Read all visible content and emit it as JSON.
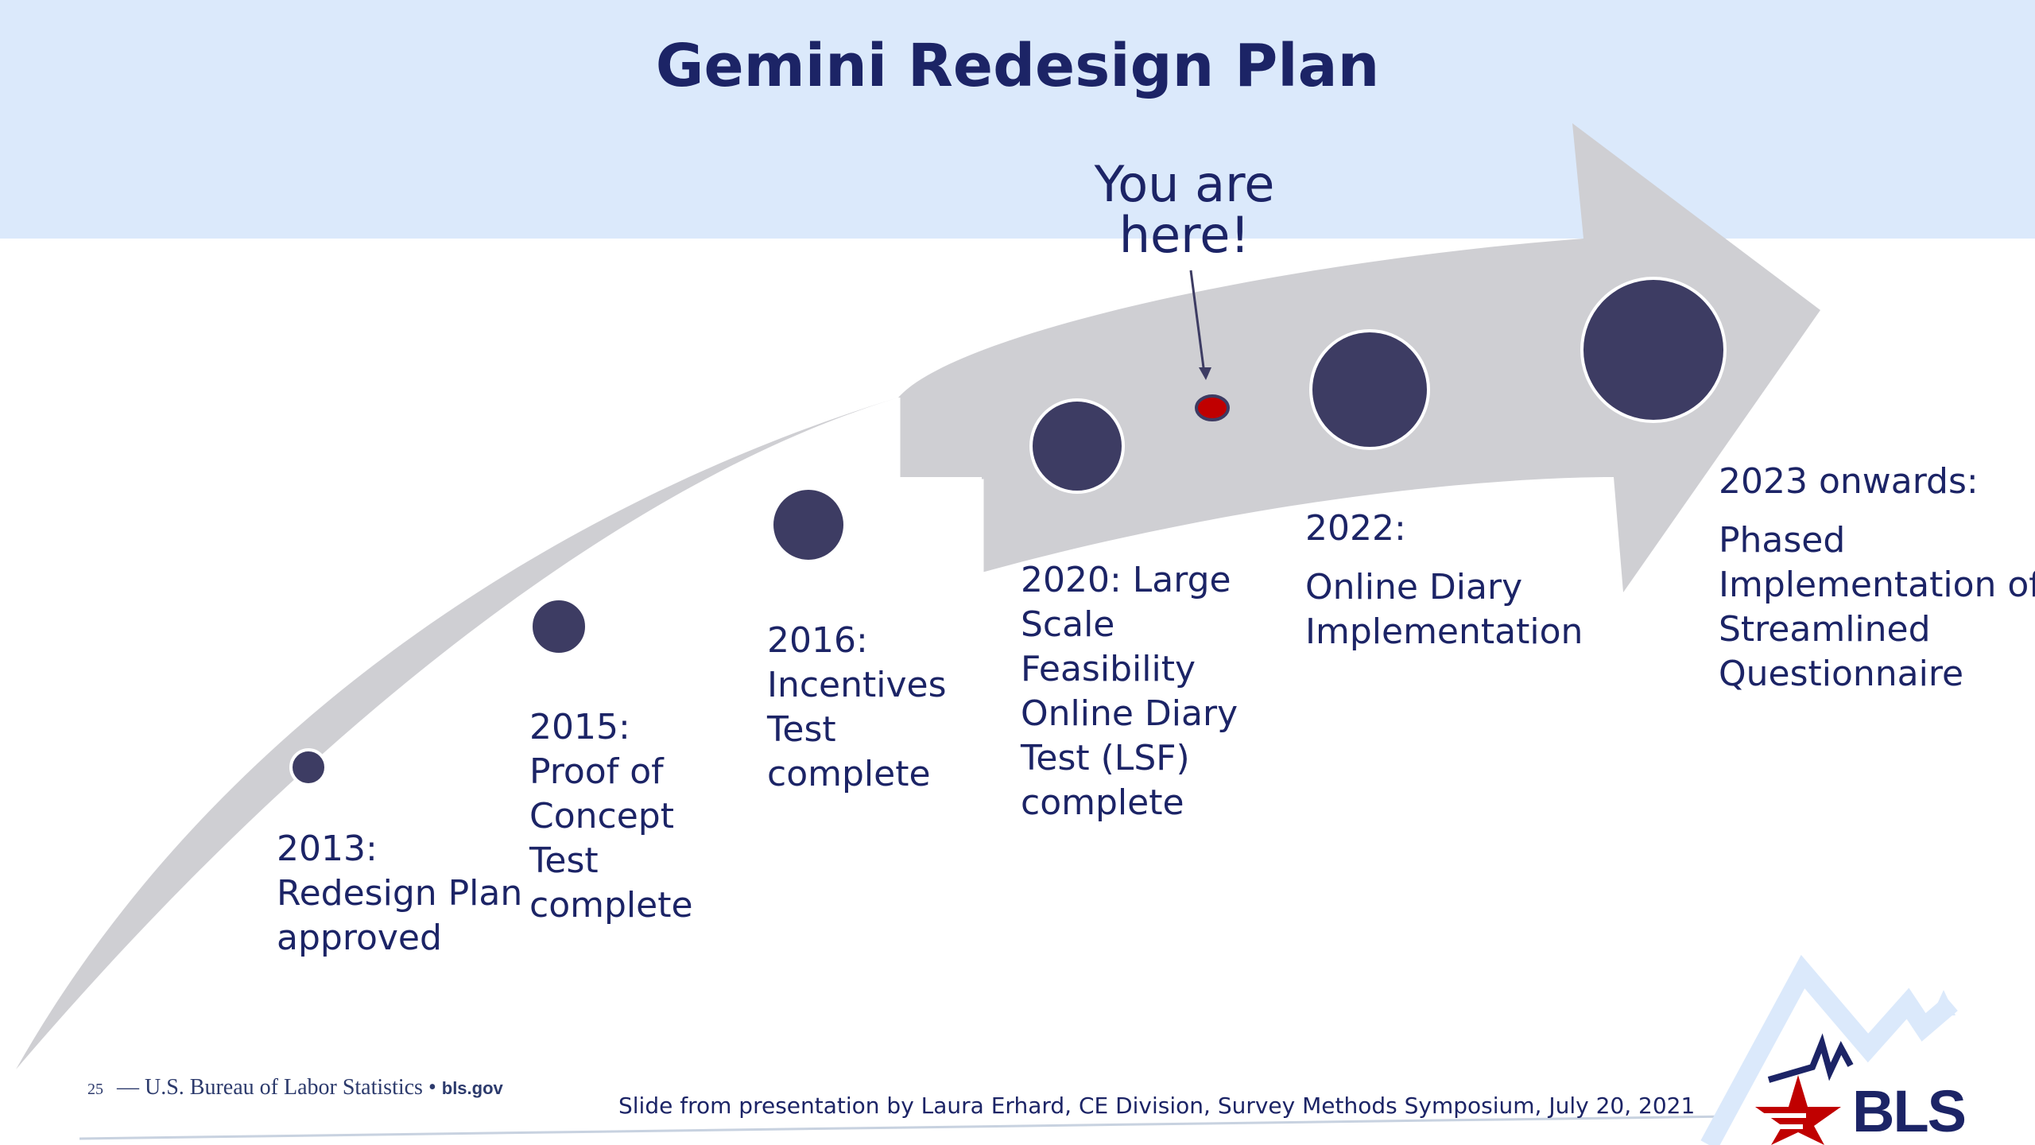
{
  "slide": {
    "title": "Gemini Redesign Plan",
    "you_are_here": [
      "You are",
      "here!"
    ]
  },
  "milestones": [
    {
      "id": "m2013",
      "lines": [
        "2013:",
        "Redesign Plan",
        "approved"
      ]
    },
    {
      "id": "m2015",
      "lines": [
        "2015:",
        "Proof of",
        "Concept",
        "Test",
        "complete"
      ]
    },
    {
      "id": "m2016",
      "lines": [
        "2016:",
        "Incentives",
        "Test",
        "complete"
      ]
    },
    {
      "id": "m2020",
      "lines": [
        "2020: Large",
        "Scale",
        "Feasibility",
        "Online Diary",
        "Test (LSF)",
        "complete"
      ]
    },
    {
      "id": "m2022",
      "lines": [
        "2022:",
        "",
        "Online Diary",
        "Implementation"
      ]
    },
    {
      "id": "m2023",
      "lines": [
        "2023 onwards:",
        "",
        "Phased",
        "Implementation of",
        "Streamlined",
        "Questionnaire"
      ]
    }
  ],
  "colors": {
    "header_band": "#dbe9fb",
    "arrow": "#cfcfd3",
    "dot": "#3d3c63",
    "you_are_here_dot": "#c00000",
    "text": "#1c2466"
  },
  "footer": {
    "page_number": "25",
    "org": "— U.S. Bureau of Labor Statistics •",
    "site": "bls.gov",
    "credit": "Slide from presentation by Laura Erhard, CE Division, Survey Methods Symposium, July 20, 2021",
    "logo_text": "BLS"
  }
}
